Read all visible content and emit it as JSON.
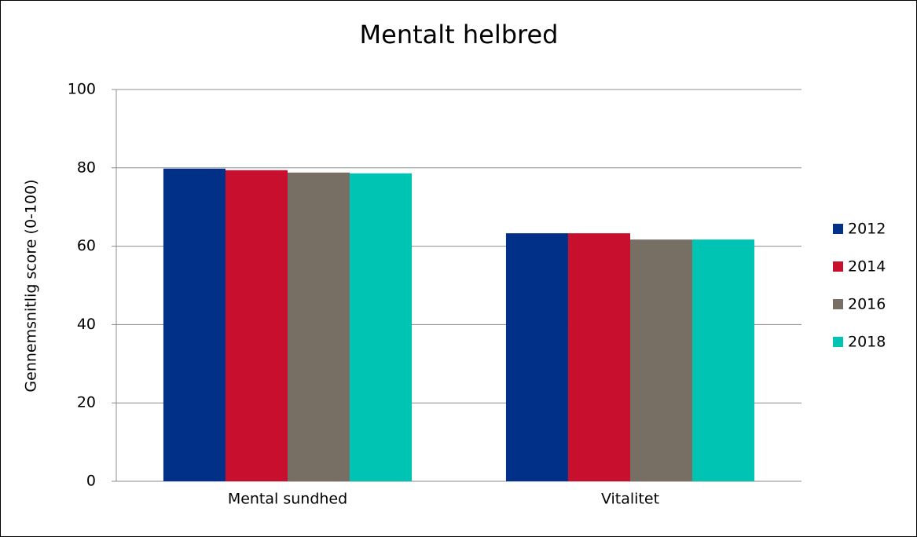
{
  "chart_data": {
    "type": "bar",
    "title": "Mentalt helbred",
    "y_label": "Gennemsnitlig score (0-100)",
    "categories": [
      "Mental sundhed",
      "Vitalitet"
    ],
    "series": [
      {
        "name": "2012",
        "color": "#003087",
        "values": [
          79.8,
          63.3
        ]
      },
      {
        "name": "2014",
        "color": "#c8102e",
        "values": [
          79.4,
          63.3
        ]
      },
      {
        "name": "2016",
        "color": "#776e64",
        "values": [
          78.8,
          61.7
        ]
      },
      {
        "name": "2018",
        "color": "#00c4b3",
        "values": [
          78.6,
          61.7
        ]
      }
    ],
    "ylim": [
      0,
      100
    ],
    "yticks": [
      0,
      20,
      40,
      60,
      80,
      100
    ],
    "grid": true,
    "legend": "right"
  }
}
